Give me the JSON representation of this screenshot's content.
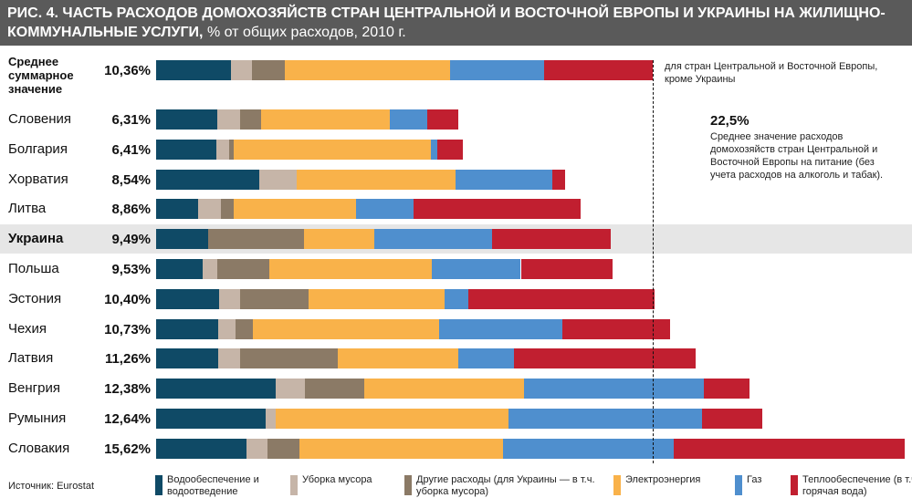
{
  "chart_data": {
    "type": "stacked-bar-horizontal",
    "title": "РИС. 4. ЧАСТЬ РАСХОДОВ ДОМОХОЗЯЙСТВ СТРАН ЦЕНТРАЛЬНОЙ И ВОСТОЧНОЙ ЕВРОПЫ И УКРАИНЫ НА ЖИЛИЩНО-КОММУНАЛЬНЫЕ УСЛУГИ,",
    "subtitle": "% от общих расходов, 2010 г.",
    "categories": [
      "Среднее суммарное значение",
      "Словения",
      "Болгария",
      "Хорватия",
      "Литва",
      "Украина",
      "Польша",
      "Эстония",
      "Чехия",
      "Латвия",
      "Венгрия",
      "Румыния",
      "Словакия"
    ],
    "values": [
      10.36,
      6.31,
      6.41,
      8.54,
      8.86,
      9.49,
      9.53,
      10.4,
      10.73,
      11.26,
      12.38,
      12.64,
      15.62
    ],
    "value_labels": [
      "10,36%",
      "6,31%",
      "6,41%",
      "8,54%",
      "8,86%",
      "9,49%",
      "9,53%",
      "10,40%",
      "10,73%",
      "11,26%",
      "12,38%",
      "12,64%",
      "15,62%"
    ],
    "series": [
      {
        "name": "Водообеспечение и водоотведение",
        "color": "#0f4a66",
        "values": [
          1.56,
          1.27,
          1.25,
          2.15,
          0.87,
          1.08,
          0.97,
          1.31,
          1.29,
          1.29,
          2.49,
          2.28,
          1.88
        ]
      },
      {
        "name": "Уборка мусора",
        "color": "#c6b5a8",
        "values": [
          0.44,
          0.49,
          0.27,
          0.78,
          0.48,
          0,
          0.3,
          0.44,
          0.36,
          0.46,
          0.61,
          0.21,
          0.44
        ]
      },
      {
        "name": "Другие расходы (для Украины — в т.ч. уборка мусора)",
        "color": "#8b7a66",
        "values": [
          0.68,
          0.44,
          0.1,
          0,
          0.27,
          2.0,
          1.1,
          1.43,
          0.36,
          2.05,
          1.25,
          0,
          0.68
        ]
      },
      {
        "name": "Электроэнергия",
        "color": "#f9b24a",
        "values": [
          3.46,
          2.68,
          4.11,
          3.32,
          2.55,
          1.48,
          3.38,
          2.83,
          3.9,
          2.51,
          3.33,
          4.87,
          4.24
        ]
      },
      {
        "name": "Газ",
        "color": "#4f8fce",
        "values": [
          1.96,
          0.78,
          0.13,
          2.02,
          1.2,
          2.45,
          1.86,
          0.51,
          2.57,
          1.16,
          3.75,
          4.03,
          3.57
        ]
      },
      {
        "name": "Теплообеспечение (в т.ч. горячая вода)",
        "color": "#c11f30",
        "values": [
          2.26,
          0.65,
          0.55,
          0.27,
          3.49,
          2.48,
          1.92,
          3.88,
          2.25,
          3.79,
          0.95,
          1.25,
          4.81
        ]
      }
    ],
    "annotations": [
      "для стран Центральной и Восточной Европы, кроме Украины",
      "22,5%",
      "Среднее значение расходов домохозяйств стран Центральной и Восточной Европы на питание (без учета расходов на алкоголь и табак)."
    ],
    "source": "Источник: Eurostat"
  }
}
